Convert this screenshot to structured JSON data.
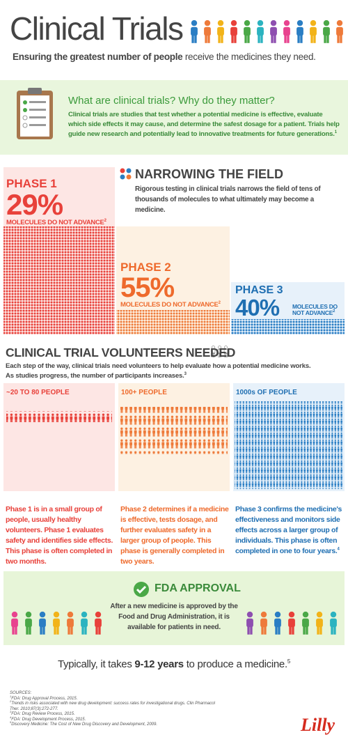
{
  "header": {
    "title": "Clinical Trials",
    "subtitle_bold": "Ensuring the greatest number of people",
    "subtitle_rest": "receive the medicines they need."
  },
  "intro": {
    "heading": "What are clinical trials? Why do they matter?",
    "body": "Clinical trials are studies that test whether a potential medicine is effective, evaluate which side effects it may cause, and determine the safest dosage for a patient. Trials help guide new research and potentially lead to innovative treatments for future generations.",
    "note": "1"
  },
  "narrowing": {
    "title": "NARROWING THE FIELD",
    "body": "Rigorous testing in clinical trials narrows the field of tens of thousands of molecules to what ultimately may become a medicine."
  },
  "phases": [
    {
      "label": "PHASE 1",
      "percent": "29%",
      "caption": "MOLECULES DO NOT ADVANCE",
      "note": "2"
    },
    {
      "label": "PHASE 2",
      "percent": "55%",
      "caption": "MOLECULES DO NOT ADVANCE",
      "note": "2"
    },
    {
      "label": "PHASE 3",
      "percent": "40%",
      "caption": "MOLECULES DO NOT ADVANCE",
      "note": "2"
    }
  ],
  "volunteers": {
    "title": "CLINICAL TRIAL VOLUNTEERS NEEDED",
    "body": "Each step of the way, clinical trials need volunteers to help evaluate how a potential medicine works. As studies progress, the number of participants increases.",
    "note": "3"
  },
  "groups": [
    {
      "label": "~20 TO 80 PEOPLE",
      "text": "Phase 1 is in a small group of people, usually healthy volunteers. Phase 1 evaluates safety and identifies side effects. This phase is often completed in two months.",
      "note": ""
    },
    {
      "label": "100+ PEOPLE",
      "text": "Phase 2 determines if a medicine is effective, tests dosage, and further evaluates safety in a larger group of people. This phase is generally completed in two years.",
      "note": ""
    },
    {
      "label": "1000s OF PEOPLE",
      "text": "Phase 3 confirms the medicine's effectiveness and monitors side effects across a larger group of individuals. This phase is often completed in one to four years.",
      "note": "4"
    }
  ],
  "fda": {
    "title": "FDA APPROVAL",
    "body": "After a new medicine is approved by the Food and Drug Administration, it is available for patients in need."
  },
  "timeline": {
    "pre": "Typically, it takes",
    "bold": "9-12 years",
    "post": "to produce a medicine.",
    "note": "5"
  },
  "sources": {
    "title": "SOURCES:",
    "items": [
      {
        "note": "1",
        "text": "FDA: Drug Approval Process, 2015."
      },
      {
        "note": "2",
        "text": "Trends in risks associated with new drug development: success rates for investigational drugs. Clin Pharmacol Ther. 2010;87(3):272-277."
      },
      {
        "note": "3",
        "text": "FDA: Drug Review Process, 2015."
      },
      {
        "note": "4",
        "text": "FDA: Drug Development Process, 2015."
      },
      {
        "note": "5",
        "text": "Discovery Medicine: The Cost of New Drug Discovery and Development, 2009."
      }
    ]
  },
  "logo": "Lilly"
}
